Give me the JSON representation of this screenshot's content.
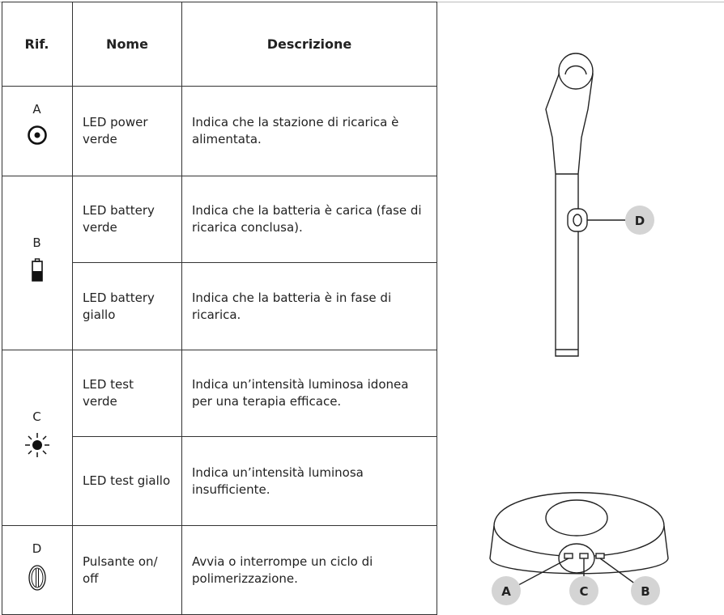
{
  "table": {
    "headers": [
      "Rif.",
      "Nome",
      "Descrizione"
    ],
    "rows": [
      {
        "ref": "A",
        "items": [
          {
            "name": "LED power verde",
            "description": "Indica che la stazione di ricarica è alimentata."
          }
        ]
      },
      {
        "ref": "B",
        "items": [
          {
            "name": "LED battery verde",
            "description": "Indica che la batteria è carica (fase di ricarica conclusa)."
          },
          {
            "name": "LED battery giallo",
            "description": "Indica che la batteria è in fase di ricarica."
          }
        ]
      },
      {
        "ref": "C",
        "items": [
          {
            "name": "LED test verde",
            "description": "Indica un’intensità luminosa idonea per una terapia efficace."
          },
          {
            "name": "LED test giallo",
            "description": "Indica un’intensità luminosa insufficiente."
          }
        ]
      },
      {
        "ref": "D",
        "items": [
          {
            "name": "Pulsante on/ off",
            "description": "Avvia o interrompe un ciclo di polimerizzazione."
          }
        ]
      }
    ]
  },
  "illustration": {
    "labels": [
      "D",
      "A",
      "C",
      "B"
    ]
  }
}
